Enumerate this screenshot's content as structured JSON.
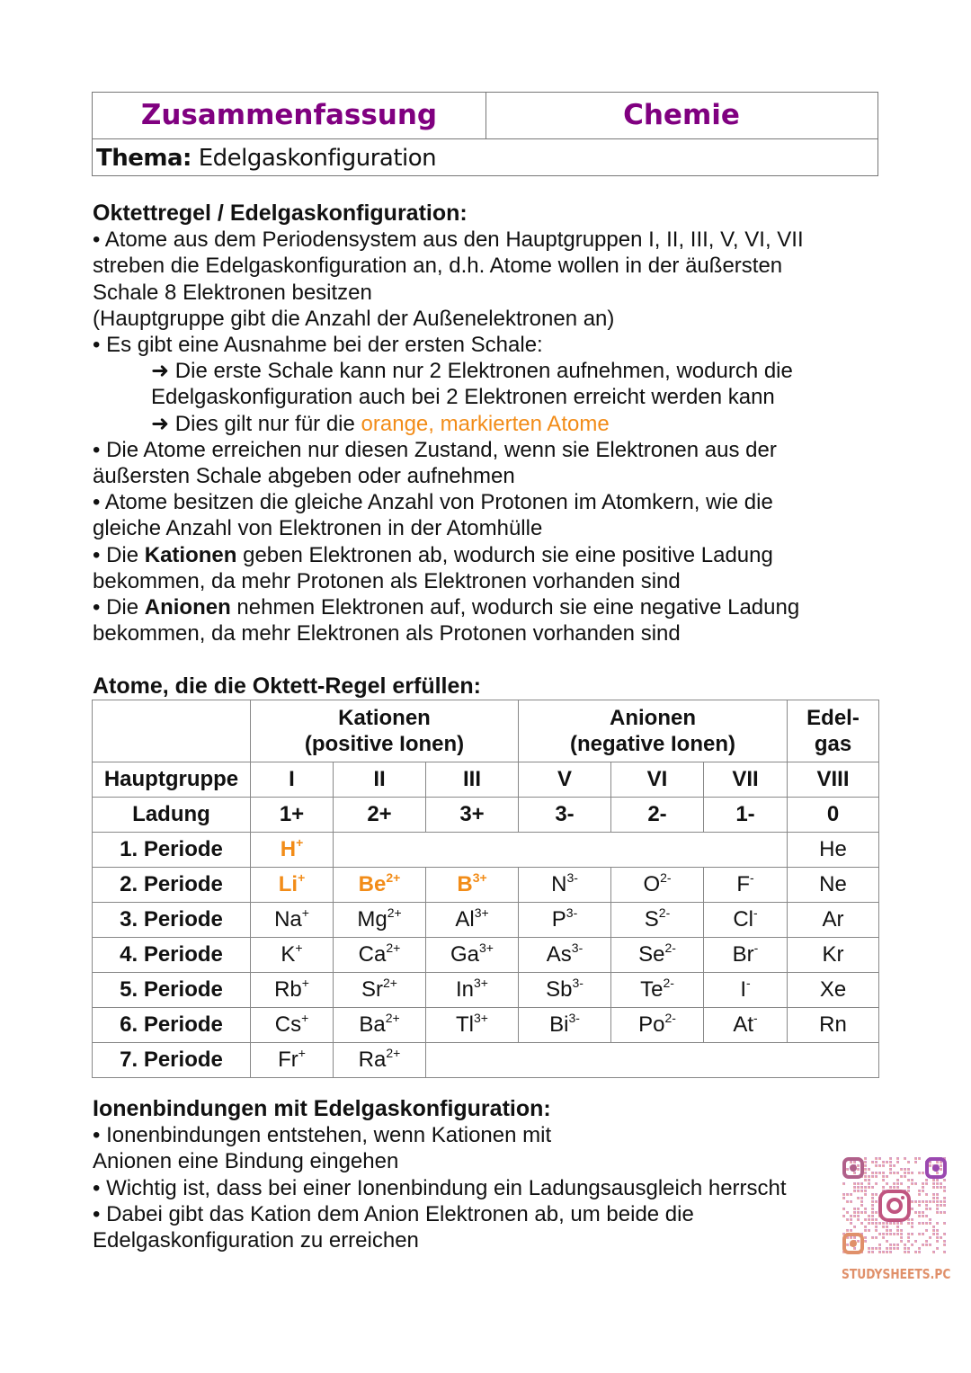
{
  "header": {
    "left": "Zusammenfassung",
    "right": "Chemie",
    "topic_label": "Thema:",
    "topic": "Edelgaskonfiguration"
  },
  "colors": {
    "accent": "#800080",
    "highlight": "#f28c18"
  },
  "section1": {
    "title": "Oktettregel / Edelgaskonfiguration:",
    "lines": [
      {
        "indent": false,
        "segs": [
          {
            "t": "• Atome aus dem Periodensystem aus den Hauptgruppen I, II, III, V, VI, VII"
          }
        ]
      },
      {
        "indent": false,
        "segs": [
          {
            "t": "streben die Edelgaskonfiguration an, d.h. Atome wollen in der äußersten"
          }
        ]
      },
      {
        "indent": false,
        "segs": [
          {
            "t": "Schale 8 Elektronen besitzen"
          }
        ]
      },
      {
        "indent": false,
        "segs": [
          {
            "t": "(Hauptgruppe gibt die Anzahl der Außenelektronen an)"
          }
        ]
      },
      {
        "indent": false,
        "segs": [
          {
            "t": "• Es gibt eine Ausnahme bei der ersten Schale:"
          }
        ]
      },
      {
        "indent": true,
        "segs": [
          {
            "t": "➜ Die erste Schale kann nur 2 Elektronen aufnehmen, wodurch die"
          }
        ]
      },
      {
        "indent": true,
        "segs": [
          {
            "t": "Edelgaskonfiguration auch bei 2 Elektronen erreicht werden kann"
          }
        ]
      },
      {
        "indent": true,
        "segs": [
          {
            "t": "➜ Dies gilt nur für die "
          },
          {
            "t": "orange, markierten Atome",
            "o": true
          }
        ]
      },
      {
        "indent": false,
        "segs": [
          {
            "t": "• Die Atome erreichen nur diesen Zustand, wenn sie Elektronen aus der"
          }
        ]
      },
      {
        "indent": false,
        "segs": [
          {
            "t": "äußersten Schale abgeben oder aufnehmen"
          }
        ]
      },
      {
        "indent": false,
        "segs": [
          {
            "t": "• Atome besitzen die gleiche Anzahl von Protonen im Atomkern, wie die"
          }
        ]
      },
      {
        "indent": false,
        "segs": [
          {
            "t": "gleiche Anzahl von Elektronen in der Atomhülle"
          }
        ]
      },
      {
        "indent": false,
        "segs": [
          {
            "t": "• Die "
          },
          {
            "t": "Kationen",
            "b": true
          },
          {
            "t": " geben Elektronen ab, wodurch sie eine positive Ladung"
          }
        ]
      },
      {
        "indent": false,
        "segs": [
          {
            "t": "bekommen, da mehr Protonen als Elektronen vorhanden sind"
          }
        ]
      },
      {
        "indent": false,
        "segs": [
          {
            "t": "• Die "
          },
          {
            "t": "Anionen",
            "b": true
          },
          {
            "t": " nehmen Elektronen auf, wodurch sie eine negative Ladung"
          }
        ]
      },
      {
        "indent": false,
        "segs": [
          {
            "t": "bekommen, da mehr Elektronen als Protonen vorhanden sind"
          }
        ]
      }
    ]
  },
  "section2": {
    "title": "Atome, die die Oktett-Regel erfüllen:"
  },
  "table": {
    "group_headers": [
      {
        "l1": "Kationen",
        "l2": "(positive Ionen)"
      },
      {
        "l1": "Anionen",
        "l2": "(negative Ionen)"
      },
      {
        "l1": "Edel-",
        "l2": "gas"
      }
    ],
    "hauptgruppe": {
      "label": "Hauptgruppe",
      "values": [
        "I",
        "II",
        "III",
        "V",
        "VI",
        "VII",
        "VIII"
      ]
    },
    "ladung": {
      "label": "Ladung",
      "values": [
        "1+",
        "2+",
        "3+",
        "3-",
        "2-",
        "1-",
        "0"
      ]
    },
    "periods": [
      {
        "label": "1. Periode",
        "cells": [
          {
            "s": "H",
            "c": "+",
            "o": true
          },
          null,
          null,
          null,
          null,
          null,
          {
            "s": "He",
            "c": ""
          }
        ]
      },
      {
        "label": "2. Periode",
        "cells": [
          {
            "s": "Li",
            "c": "+",
            "o": true
          },
          {
            "s": "Be",
            "c": "2+",
            "o": true
          },
          {
            "s": "B",
            "c": "3+",
            "o": true
          },
          {
            "s": "N",
            "c": "3-"
          },
          {
            "s": "O",
            "c": "2-"
          },
          {
            "s": "F",
            "c": "-"
          },
          {
            "s": "Ne",
            "c": ""
          }
        ]
      },
      {
        "label": "3. Periode",
        "cells": [
          {
            "s": "Na",
            "c": "+"
          },
          {
            "s": "Mg",
            "c": "2+"
          },
          {
            "s": "Al",
            "c": "3+"
          },
          {
            "s": "P",
            "c": "3-"
          },
          {
            "s": "S",
            "c": "2-"
          },
          {
            "s": "Cl",
            "c": "-"
          },
          {
            "s": "Ar",
            "c": ""
          }
        ]
      },
      {
        "label": "4. Periode",
        "cells": [
          {
            "s": "K",
            "c": "+"
          },
          {
            "s": "Ca",
            "c": "2+"
          },
          {
            "s": "Ga",
            "c": "3+"
          },
          {
            "s": "As",
            "c": "3-"
          },
          {
            "s": "Se",
            "c": "2-"
          },
          {
            "s": "Br",
            "c": "-"
          },
          {
            "s": "Kr",
            "c": ""
          }
        ]
      },
      {
        "label": "5. Periode",
        "cells": [
          {
            "s": "Rb",
            "c": "+"
          },
          {
            "s": "Sr",
            "c": "2+"
          },
          {
            "s": "In",
            "c": "3+"
          },
          {
            "s": "Sb",
            "c": "3-"
          },
          {
            "s": "Te",
            "c": "2-"
          },
          {
            "s": "I",
            "c": "-"
          },
          {
            "s": "Xe",
            "c": ""
          }
        ]
      },
      {
        "label": "6. Periode",
        "cells": [
          {
            "s": "Cs",
            "c": "+"
          },
          {
            "s": "Ba",
            "c": "2+"
          },
          {
            "s": "Tl",
            "c": "3+"
          },
          {
            "s": "Bi",
            "c": "3-"
          },
          {
            "s": "Po",
            "c": "2-"
          },
          {
            "s": "At",
            "c": "-"
          },
          {
            "s": "Rn",
            "c": ""
          }
        ]
      },
      {
        "label": "7. Periode",
        "cells": [
          {
            "s": "Fr",
            "c": "+"
          },
          {
            "s": "Ra",
            "c": "2+"
          },
          null,
          null,
          null,
          null,
          null
        ]
      }
    ]
  },
  "section3": {
    "title": "Ionenbindungen mit Edelgaskonfiguration:",
    "lines": [
      {
        "indent": false,
        "segs": [
          {
            "t": "• Ionenbindungen entstehen, wenn Kationen mit"
          }
        ]
      },
      {
        "indent": false,
        "segs": [
          {
            "t": "Anionen eine Bindung eingehen"
          }
        ]
      },
      {
        "indent": false,
        "segs": [
          {
            "t": "• Wichtig ist, dass bei einer Ionenbindung ein Ladungsausgleich herrscht"
          }
        ]
      },
      {
        "indent": false,
        "segs": [
          {
            "t": "• Dabei gibt das Kation dem Anion Elektronen ab, um beide die"
          }
        ]
      },
      {
        "indent": false,
        "segs": [
          {
            "t": "Edelgaskonfiguration zu erreichen"
          }
        ]
      }
    ]
  },
  "qr": {
    "icon": "instagram-qr-code",
    "caption": "STUDYSHEETS.PC"
  }
}
